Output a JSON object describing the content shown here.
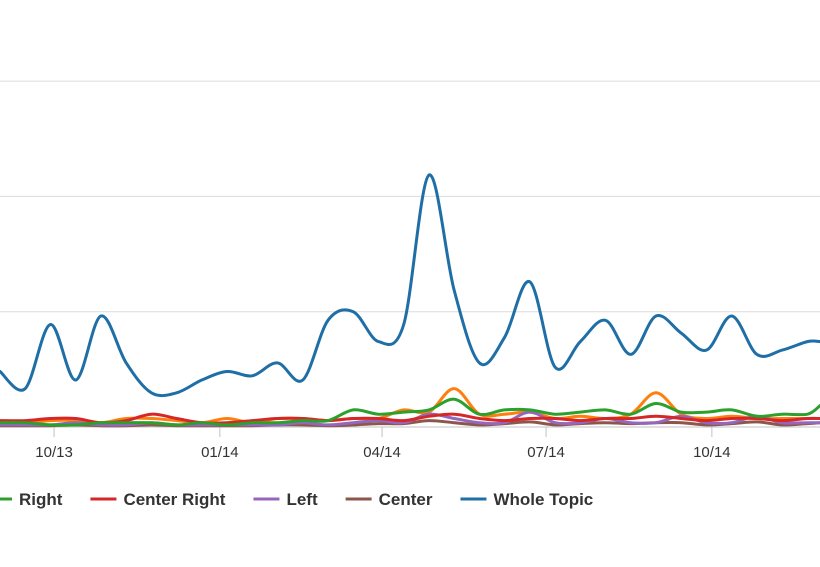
{
  "chart_data": {
    "type": "line",
    "title": "",
    "xlabel": "",
    "ylabel": "",
    "x_ticks": [
      "10/13",
      "01/14",
      "04/14",
      "07/14",
      "10/14"
    ],
    "x_range": [
      "2013-09-01",
      "2014-11-30"
    ],
    "ylim": [
      0,
      1
    ],
    "y_gridlines": [
      0.27,
      0.54,
      0.81
    ],
    "grid": true,
    "legend_position": "bottom",
    "x": [
      "2013-09-01",
      "2013-09-15",
      "2013-09-29",
      "2013-10-13",
      "2013-10-27",
      "2013-11-10",
      "2013-11-24",
      "2013-12-08",
      "2013-12-22",
      "2014-01-05",
      "2014-01-19",
      "2014-02-02",
      "2014-02-16",
      "2014-03-02",
      "2014-03-16",
      "2014-03-30",
      "2014-04-13",
      "2014-04-27",
      "2014-05-11",
      "2014-05-25",
      "2014-06-08",
      "2014-06-22",
      "2014-07-06",
      "2014-07-20",
      "2014-08-03",
      "2014-08-17",
      "2014-08-31",
      "2014-09-14",
      "2014-09-28",
      "2014-10-12",
      "2014-10-26",
      "2014-11-09",
      "2014-11-23",
      "2014-11-30"
    ],
    "series": [
      {
        "name": "Right",
        "color": "#2ca02c",
        "values": [
          0.01,
          0.01,
          0.005,
          0.005,
          0.01,
          0.01,
          0.01,
          0.005,
          0.01,
          0.005,
          0.01,
          0.01,
          0.015,
          0.015,
          0.04,
          0.03,
          0.035,
          0.04,
          0.065,
          0.03,
          0.04,
          0.04,
          0.03,
          0.035,
          0.04,
          0.03,
          0.055,
          0.035,
          0.035,
          0.04,
          0.025,
          0.03,
          0.03,
          0.05
        ]
      },
      {
        "name": "Center Right",
        "color": "#d62728",
        "values": [
          0.015,
          0.015,
          0.02,
          0.02,
          0.01,
          0.015,
          0.03,
          0.02,
          0.01,
          0.01,
          0.015,
          0.02,
          0.02,
          0.015,
          0.02,
          0.02,
          0.015,
          0.025,
          0.03,
          0.02,
          0.015,
          0.02,
          0.02,
          0.015,
          0.02,
          0.02,
          0.025,
          0.02,
          0.015,
          0.02,
          0.02,
          0.015,
          0.02,
          0.02
        ]
      },
      {
        "name": "Left",
        "color": "#9467bd",
        "values": [
          0.005,
          0.005,
          0.005,
          0.01,
          0.005,
          0.005,
          0.01,
          0.005,
          0.005,
          0.005,
          0.005,
          0.005,
          0.01,
          0.005,
          0.01,
          0.015,
          0.01,
          0.03,
          0.02,
          0.01,
          0.01,
          0.035,
          0.01,
          0.01,
          0.02,
          0.01,
          0.01,
          0.025,
          0.01,
          0.01,
          0.025,
          0.01,
          0.01,
          0.01
        ]
      },
      {
        "name": "Center",
        "color": "#8c564b",
        "values": [
          0.003,
          0.003,
          0.003,
          0.005,
          0.003,
          0.003,
          0.005,
          0.003,
          0.003,
          0.003,
          0.003,
          0.005,
          0.005,
          0.003,
          0.005,
          0.008,
          0.008,
          0.015,
          0.01,
          0.005,
          0.008,
          0.012,
          0.005,
          0.008,
          0.01,
          0.008,
          0.01,
          0.01,
          0.005,
          0.008,
          0.012,
          0.005,
          0.008,
          0.01
        ]
      },
      {
        "name": "Whole Topic",
        "color": "#1f6fa6",
        "values": [
          0.13,
          0.09,
          0.24,
          0.11,
          0.26,
          0.15,
          0.08,
          0.08,
          0.11,
          0.13,
          0.12,
          0.15,
          0.11,
          0.25,
          0.27,
          0.2,
          0.24,
          0.59,
          0.32,
          0.15,
          0.21,
          0.34,
          0.14,
          0.2,
          0.25,
          0.17,
          0.26,
          0.22,
          0.18,
          0.26,
          0.17,
          0.18,
          0.2,
          0.2
        ]
      }
    ],
    "extra_series_color": "#ff7f0e",
    "extra_series_values": [
      0.01,
      0.01,
      0.015,
      0.015,
      0.01,
      0.02,
      0.02,
      0.015,
      0.01,
      0.02,
      0.01,
      0.02,
      0.02,
      0.015,
      0.02,
      0.02,
      0.04,
      0.035,
      0.09,
      0.03,
      0.03,
      0.035,
      0.02,
      0.025,
      0.02,
      0.03,
      0.08,
      0.03,
      0.02,
      0.025,
      0.02,
      0.02,
      0.02,
      0.02
    ]
  }
}
